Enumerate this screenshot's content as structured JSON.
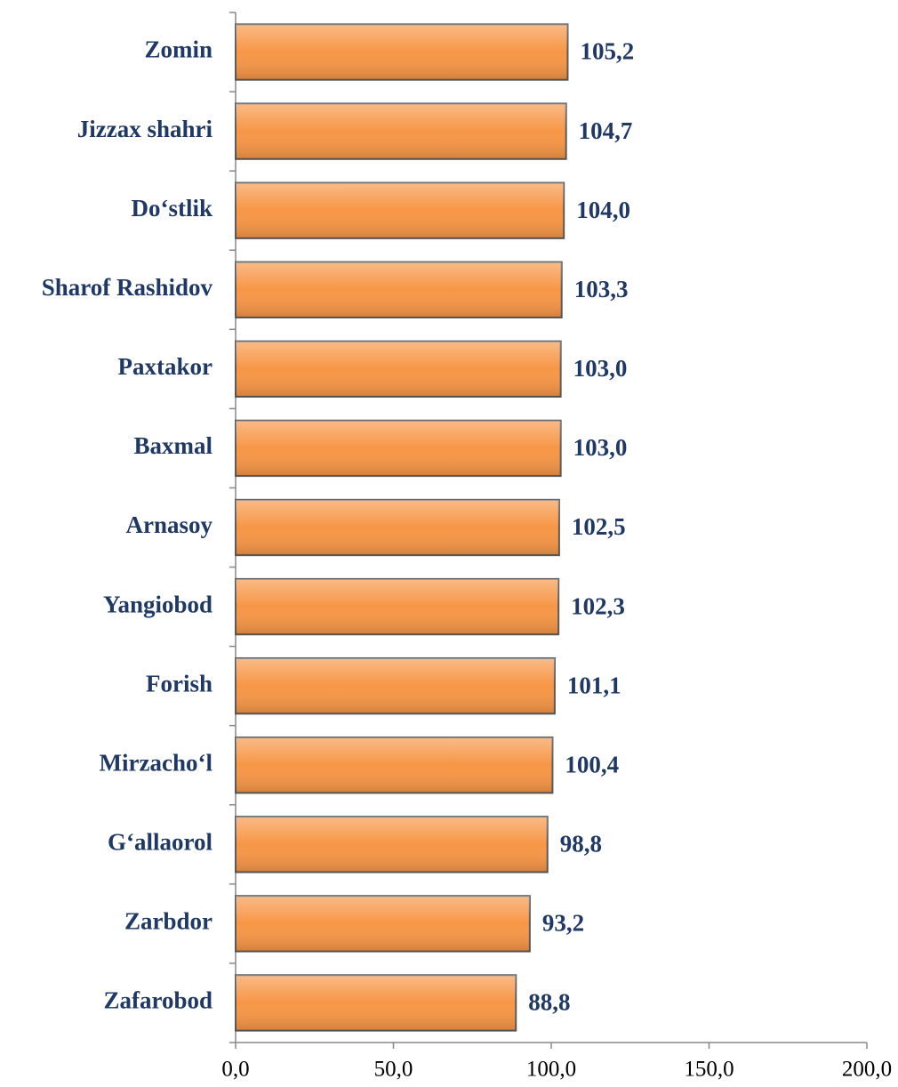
{
  "chart_data": {
    "type": "bar",
    "orientation": "horizontal",
    "categories": [
      "Zomin",
      "Jizzax shahri",
      "Do‘stlik",
      "Sharof Rashidov",
      "Paxtakor",
      "Baxmal",
      "Arnasoy",
      "Yangiobod",
      "Forish",
      "Mirzacho‘l",
      "G‘allaorol",
      "Zarbdor",
      "Zafarobod"
    ],
    "values": [
      105.2,
      104.7,
      104.0,
      103.3,
      103.0,
      103.0,
      102.5,
      102.3,
      101.1,
      100.4,
      98.8,
      93.2,
      88.8
    ],
    "value_labels": [
      "105,2",
      "104,7",
      "104,0",
      "103,3",
      "103,0",
      "103,0",
      "102,5",
      "102,3",
      "101,1",
      "100,4",
      "98,8",
      "93,2",
      "88,8"
    ],
    "color": "#f79646",
    "xlim": [
      0,
      200
    ],
    "xticks": [
      {
        "value": 0,
        "label": "0,0"
      },
      {
        "value": 50,
        "label": "50,0"
      },
      {
        "value": 100,
        "label": "100,0"
      },
      {
        "value": 150,
        "label": "150,0"
      },
      {
        "value": 200,
        "label": "200,0"
      }
    ],
    "grid": false
  }
}
